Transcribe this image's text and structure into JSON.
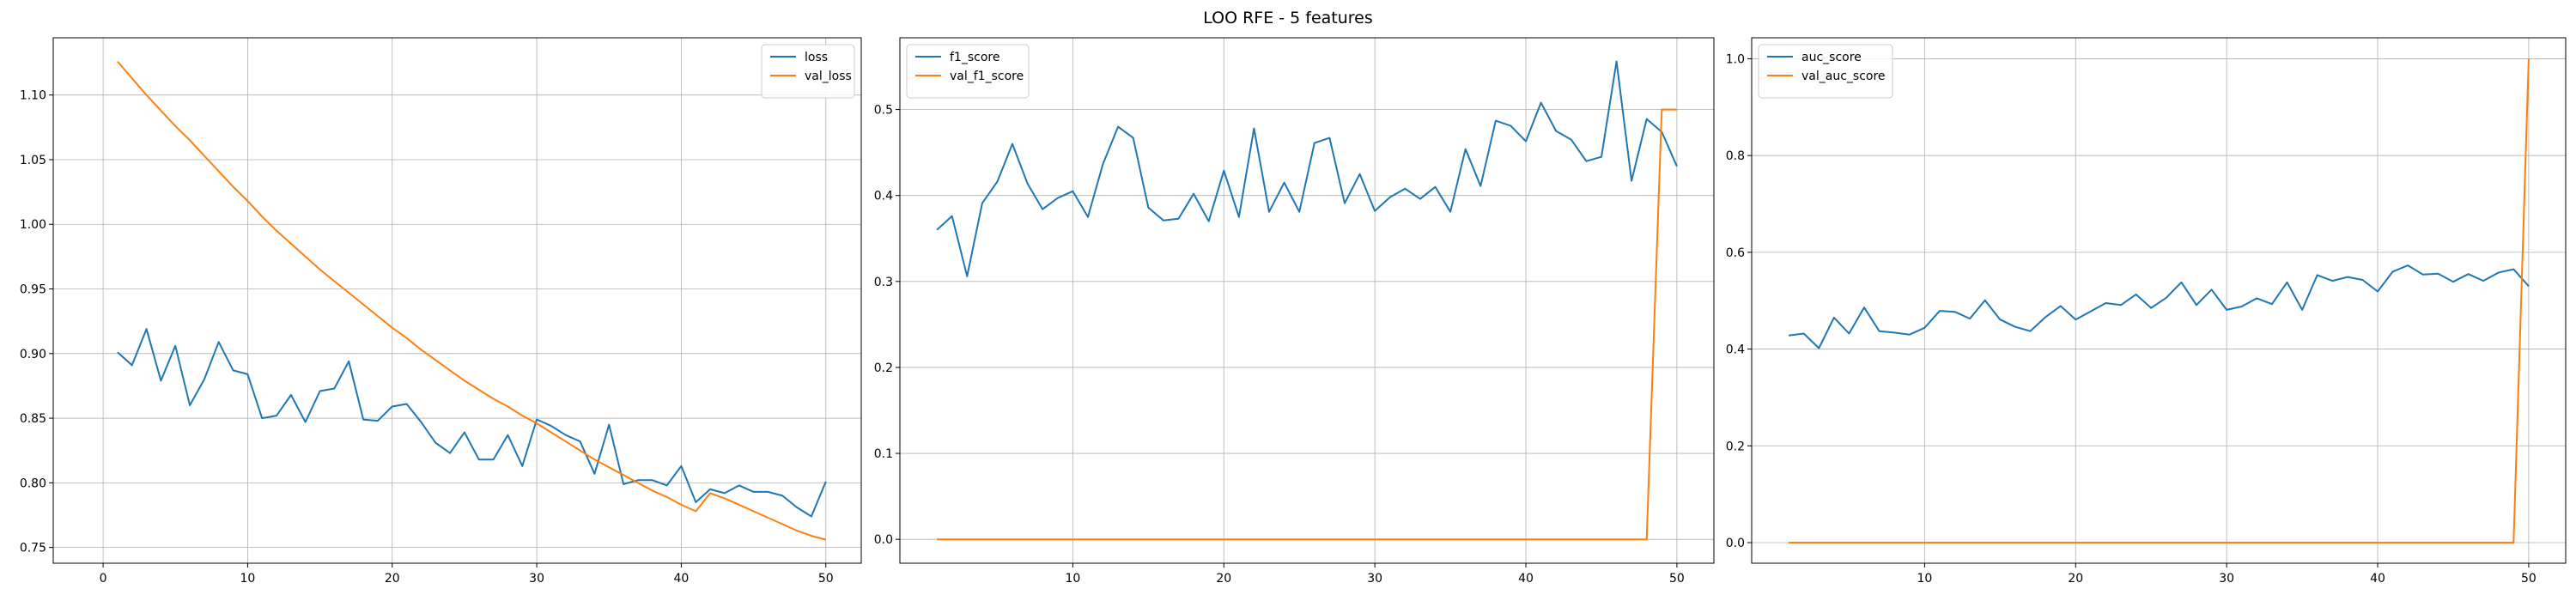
{
  "figure": {
    "title": "LOO RFE - 5 features"
  },
  "chart_data": [
    {
      "type": "line",
      "title": "",
      "xlabel": "",
      "ylabel": "",
      "xlim": [
        -3.45,
        52.45
      ],
      "ylim": [
        0.7378,
        1.1443
      ],
      "xticks": [
        0,
        10,
        20,
        30,
        40,
        50
      ],
      "yticks": [
        0.75,
        0.8,
        0.85,
        0.9,
        0.95,
        1.0,
        1.05,
        1.1
      ],
      "ytick_labels": [
        "0.75",
        "0.80",
        "0.85",
        "0.90",
        "0.95",
        "1.00",
        "1.05",
        "1.10"
      ],
      "grid": true,
      "legend": "upper right",
      "x": [
        1,
        2,
        3,
        4,
        5,
        6,
        7,
        8,
        9,
        10,
        11,
        12,
        13,
        14,
        15,
        16,
        17,
        18,
        19,
        20,
        21,
        22,
        23,
        24,
        25,
        26,
        27,
        28,
        29,
        30,
        31,
        32,
        33,
        34,
        35,
        36,
        37,
        38,
        39,
        40,
        41,
        42,
        43,
        44,
        45,
        46,
        47,
        48,
        49,
        50
      ],
      "series": [
        {
          "name": "loss",
          "color": "#1f77b4",
          "values": [
            0.901,
            0.891,
            0.919,
            0.879,
            0.906,
            0.86,
            0.88,
            0.909,
            0.887,
            0.884,
            0.85,
            0.852,
            0.868,
            0.847,
            0.871,
            0.873,
            0.894,
            0.849,
            0.848,
            0.859,
            0.861,
            0.847,
            0.831,
            0.823,
            0.839,
            0.818,
            0.818,
            0.837,
            0.813,
            0.849,
            0.844,
            0.837,
            0.832,
            0.807,
            0.845,
            0.799,
            0.802,
            0.802,
            0.798,
            0.813,
            0.785,
            0.795,
            0.792,
            0.798,
            0.793,
            0.793,
            0.79,
            0.781,
            0.774,
            0.801
          ]
        },
        {
          "name": "val_loss",
          "color": "#ff7f0e",
          "values": [
            1.126,
            1.113,
            1.1,
            1.088,
            1.076,
            1.065,
            1.053,
            1.041,
            1.029,
            1.018,
            1.006,
            0.995,
            0.985,
            0.975,
            0.965,
            0.956,
            0.947,
            0.938,
            0.929,
            0.92,
            0.912,
            0.903,
            0.895,
            0.887,
            0.879,
            0.872,
            0.865,
            0.859,
            0.852,
            0.846,
            0.839,
            0.832,
            0.825,
            0.818,
            0.812,
            0.806,
            0.8,
            0.794,
            0.789,
            0.783,
            0.778,
            0.792,
            0.788,
            0.783,
            0.778,
            0.773,
            0.768,
            0.763,
            0.759,
            0.756
          ]
        }
      ]
    },
    {
      "type": "line",
      "title": "",
      "xlabel": "",
      "ylabel": "",
      "xlim": [
        -1.45,
        52.45
      ],
      "ylim": [
        -0.0278,
        0.5835
      ],
      "xticks": [
        10,
        20,
        30,
        40,
        50
      ],
      "yticks": [
        0.0,
        0.1,
        0.2,
        0.3,
        0.4,
        0.5
      ],
      "ytick_labels": [
        "0.0",
        "0.1",
        "0.2",
        "0.3",
        "0.4",
        "0.5"
      ],
      "grid": true,
      "legend": "upper left",
      "x": [
        1,
        2,
        3,
        4,
        5,
        6,
        7,
        8,
        9,
        10,
        11,
        12,
        13,
        14,
        15,
        16,
        17,
        18,
        19,
        20,
        21,
        22,
        23,
        24,
        25,
        26,
        27,
        28,
        29,
        30,
        31,
        32,
        33,
        34,
        35,
        36,
        37,
        38,
        39,
        40,
        41,
        42,
        43,
        44,
        45,
        46,
        47,
        48,
        49,
        50
      ],
      "series": [
        {
          "name": "f1_score",
          "color": "#1f77b4",
          "values": [
            0.36,
            0.376,
            0.306,
            0.391,
            0.416,
            0.46,
            0.414,
            0.384,
            0.397,
            0.405,
            0.375,
            0.437,
            0.48,
            0.467,
            0.386,
            0.371,
            0.373,
            0.402,
            0.37,
            0.429,
            0.375,
            0.478,
            0.381,
            0.415,
            0.381,
            0.461,
            0.467,
            0.391,
            0.425,
            0.382,
            0.398,
            0.408,
            0.396,
            0.41,
            0.381,
            0.454,
            0.411,
            0.487,
            0.481,
            0.463,
            0.508,
            0.475,
            0.465,
            0.44,
            0.445,
            0.556,
            0.417,
            0.489,
            0.474,
            0.434
          ]
        },
        {
          "name": "val_f1_score",
          "color": "#ff7f0e",
          "values": [
            0,
            0,
            0,
            0,
            0,
            0,
            0,
            0,
            0,
            0,
            0,
            0,
            0,
            0,
            0,
            0,
            0,
            0,
            0,
            0,
            0,
            0,
            0,
            0,
            0,
            0,
            0,
            0,
            0,
            0,
            0,
            0,
            0,
            0,
            0,
            0,
            0,
            0,
            0,
            0,
            0,
            0,
            0,
            0,
            0,
            0,
            0,
            0,
            0.5,
            0.5
          ]
        }
      ]
    },
    {
      "type": "line",
      "title": "",
      "xlabel": "",
      "ylabel": "",
      "xlim": [
        -1.45,
        52.45
      ],
      "ylim": [
        -0.0426,
        1.0434
      ],
      "xticks": [
        10,
        20,
        30,
        40,
        50
      ],
      "yticks": [
        0.0,
        0.2,
        0.4,
        0.6,
        0.8,
        1.0
      ],
      "ytick_labels": [
        "0.0",
        "0.2",
        "0.4",
        "0.6",
        "0.8",
        "1.0"
      ],
      "grid": true,
      "legend": "upper left",
      "x": [
        1,
        2,
        3,
        4,
        5,
        6,
        7,
        8,
        9,
        10,
        11,
        12,
        13,
        14,
        15,
        16,
        17,
        18,
        19,
        20,
        21,
        22,
        23,
        24,
        25,
        26,
        27,
        28,
        29,
        30,
        31,
        32,
        33,
        34,
        35,
        36,
        37,
        38,
        39,
        40,
        41,
        42,
        43,
        44,
        45,
        46,
        47,
        48,
        49,
        50
      ],
      "series": [
        {
          "name": "auc_score",
          "color": "#1f77b4",
          "values": [
            0.428,
            0.432,
            0.402,
            0.465,
            0.432,
            0.486,
            0.437,
            0.434,
            0.43,
            0.444,
            0.479,
            0.477,
            0.463,
            0.501,
            0.461,
            0.446,
            0.437,
            0.466,
            0.489,
            0.461,
            0.478,
            0.495,
            0.491,
            0.513,
            0.485,
            0.506,
            0.538,
            0.491,
            0.523,
            0.481,
            0.488,
            0.505,
            0.493,
            0.538,
            0.481,
            0.553,
            0.541,
            0.549,
            0.543,
            0.519,
            0.56,
            0.573,
            0.554,
            0.556,
            0.539,
            0.555,
            0.541,
            0.558,
            0.565,
            0.53
          ]
        },
        {
          "name": "val_auc_score",
          "color": "#ff7f0e",
          "values": [
            0,
            0,
            0,
            0,
            0,
            0,
            0,
            0,
            0,
            0,
            0,
            0,
            0,
            0,
            0,
            0,
            0,
            0,
            0,
            0,
            0,
            0,
            0,
            0,
            0,
            0,
            0,
            0,
            0,
            0,
            0,
            0,
            0,
            0,
            0,
            0,
            0,
            0,
            0,
            0,
            0,
            0,
            0,
            0,
            0,
            0,
            0,
            0,
            0,
            1.0
          ]
        }
      ]
    }
  ]
}
